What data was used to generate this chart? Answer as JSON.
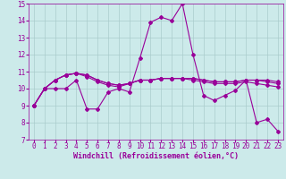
{
  "xlabel": "Windchill (Refroidissement éolien,°C)",
  "ylabel": "",
  "bg_color": "#cceaea",
  "grid_color": "#aacccc",
  "line_color": "#990099",
  "xlim": [
    -0.5,
    23.5
  ],
  "ylim": [
    7,
    15
  ],
  "yticks": [
    7,
    8,
    9,
    10,
    11,
    12,
    13,
    14,
    15
  ],
  "xticks": [
    0,
    1,
    2,
    3,
    4,
    5,
    6,
    7,
    8,
    9,
    10,
    11,
    12,
    13,
    14,
    15,
    16,
    17,
    18,
    19,
    20,
    21,
    22,
    23
  ],
  "series": [
    [
      9.0,
      10.0,
      10.0,
      10.0,
      10.5,
      8.8,
      8.8,
      9.8,
      10.0,
      9.8,
      11.8,
      13.9,
      14.2,
      14.0,
      15.0,
      12.0,
      9.6,
      9.3,
      9.6,
      9.9,
      10.5,
      8.0,
      8.2,
      7.5
    ],
    [
      9.0,
      10.0,
      10.5,
      10.8,
      10.9,
      10.8,
      10.5,
      10.3,
      10.2,
      10.3,
      10.5,
      10.5,
      10.6,
      10.6,
      10.6,
      10.6,
      10.5,
      10.4,
      10.4,
      10.4,
      10.5,
      10.5,
      10.5,
      10.4
    ],
    [
      9.0,
      10.0,
      10.5,
      10.8,
      10.9,
      10.8,
      10.5,
      10.3,
      10.2,
      10.3,
      10.5,
      10.5,
      10.6,
      10.6,
      10.6,
      10.6,
      10.5,
      10.4,
      10.4,
      10.4,
      10.5,
      10.5,
      10.4,
      10.3
    ],
    [
      9.0,
      10.0,
      10.5,
      10.8,
      10.9,
      10.7,
      10.4,
      10.2,
      10.1,
      10.3,
      10.5,
      10.5,
      10.6,
      10.6,
      10.6,
      10.5,
      10.4,
      10.3,
      10.3,
      10.3,
      10.4,
      10.3,
      10.2,
      10.1
    ]
  ],
  "marker": "D",
  "markersize": 2.0,
  "linewidth": 0.8,
  "xlabel_fontsize": 6,
  "tick_fontsize": 5.5
}
